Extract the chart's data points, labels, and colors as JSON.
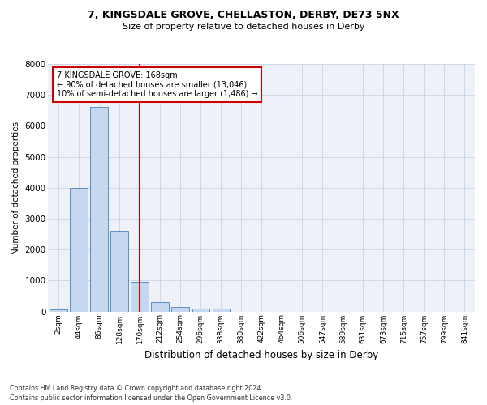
{
  "title_line1": "7, KINGSDALE GROVE, CHELLASTON, DERBY, DE73 5NX",
  "title_line2": "Size of property relative to detached houses in Derby",
  "xlabel": "Distribution of detached houses by size in Derby",
  "ylabel": "Number of detached properties",
  "bar_labels": [
    "2sqm",
    "44sqm",
    "86sqm",
    "128sqm",
    "170sqm",
    "212sqm",
    "254sqm",
    "296sqm",
    "338sqm",
    "380sqm",
    "422sqm",
    "464sqm",
    "506sqm",
    "547sqm",
    "589sqm",
    "631sqm",
    "673sqm",
    "715sqm",
    "757sqm",
    "799sqm",
    "841sqm"
  ],
  "bar_values": [
    60,
    4000,
    6600,
    2600,
    950,
    310,
    140,
    100,
    80,
    0,
    0,
    0,
    0,
    0,
    0,
    0,
    0,
    0,
    0,
    0,
    0
  ],
  "bar_color": "#c5d8f0",
  "bar_edge_color": "#5a8fc4",
  "grid_color": "#d0d8e8",
  "bg_color": "#eef2f8",
  "vline_color": "#cc0000",
  "annotation_text": "7 KINGSDALE GROVE: 168sqm\n← 90% of detached houses are smaller (13,046)\n10% of semi-detached houses are larger (1,486) →",
  "annotation_box_color": "white",
  "annotation_box_edge": "#cc0000",
  "ylim": [
    0,
    8000
  ],
  "yticks": [
    0,
    1000,
    2000,
    3000,
    4000,
    5000,
    6000,
    7000,
    8000
  ],
  "footer_line1": "Contains HM Land Registry data © Crown copyright and database right 2024.",
  "footer_line2": "Contains public sector information licensed under the Open Government Licence v3.0."
}
